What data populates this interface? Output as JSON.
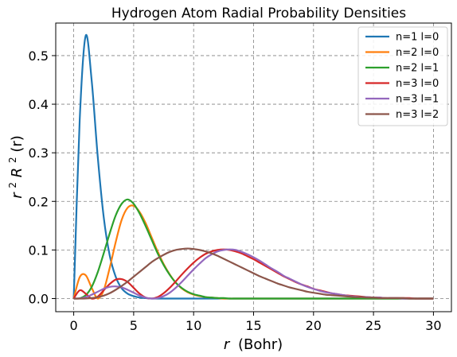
{
  "chart_data": {
    "type": "line",
    "title": "Hydrogen Atom Radial Probability Densities",
    "xlabel": {
      "var": "r",
      "unit": "(Bohr)"
    },
    "ylabel": {
      "base": "r",
      "sup1": "2",
      "mid": "R",
      "sup2": "2",
      "tail": "(r)"
    },
    "xlim": [
      -1.5,
      31.5
    ],
    "ylim": [
      -0.027,
      0.567
    ],
    "xticks": [
      0,
      5,
      10,
      15,
      20,
      25,
      30
    ],
    "yticks": [
      0.0,
      0.1,
      0.2,
      0.3,
      0.4,
      0.5
    ],
    "ytick_labels": [
      "0.0",
      "0.1",
      "0.2",
      "0.3",
      "0.4",
      "0.5"
    ],
    "xtick_labels": [
      "0",
      "5",
      "10",
      "15",
      "20",
      "25",
      "30"
    ],
    "grid": true,
    "legend_position": "top-right",
    "x": [
      0,
      0.5,
      1,
      1.5,
      2,
      2.5,
      3,
      3.5,
      4,
      4.5,
      5,
      5.5,
      6,
      6.5,
      7,
      7.5,
      8,
      8.5,
      9,
      9.5,
      10,
      10.5,
      11,
      11.5,
      12,
      12.5,
      13,
      13.5,
      14,
      14.5,
      15,
      15.5,
      16,
      16.5,
      17,
      17.5,
      18,
      18.5,
      19,
      19.5,
      20,
      20.5,
      21,
      21.5,
      22,
      22.5,
      23,
      23.5,
      24,
      24.5,
      25,
      25.5,
      26,
      26.5,
      27,
      27.5,
      28,
      28.5,
      29,
      29.5,
      30
    ],
    "series": [
      {
        "name": "n=1 l=0",
        "color": "#1f77b4",
        "values": [
          0,
          0.368,
          0.541,
          0.448,
          0.293,
          0.168,
          0.089,
          0.045,
          0.021,
          0.01,
          0.005,
          0.002,
          0.001,
          0,
          0,
          0,
          0,
          0,
          0,
          0,
          0,
          0,
          0,
          0,
          0,
          0,
          0,
          0,
          0,
          0,
          0,
          0,
          0,
          0,
          0,
          0,
          0,
          0,
          0,
          0,
          0,
          0,
          0,
          0,
          0,
          0,
          0,
          0,
          0,
          0,
          0,
          0,
          0,
          0,
          0,
          0,
          0,
          0,
          0,
          0,
          0
        ]
      },
      {
        "name": "n=2 l=0",
        "color": "#ff7f0e",
        "values": [
          0,
          0.044,
          0.048,
          0.022,
          0,
          0.017,
          0.063,
          0.116,
          0.162,
          0.187,
          0.191,
          0.178,
          0.155,
          0.126,
          0.097,
          0.071,
          0.05,
          0.033,
          0.021,
          0.013,
          0.008,
          0.005,
          0.003,
          0.002,
          0.001,
          0,
          0,
          0,
          0,
          0,
          0,
          0,
          0,
          0,
          0,
          0,
          0,
          0,
          0,
          0,
          0,
          0,
          0,
          0,
          0,
          0,
          0,
          0,
          0,
          0,
          0,
          0,
          0,
          0,
          0,
          0,
          0,
          0,
          0,
          0,
          0
        ]
      },
      {
        "name": "n=2 l=1",
        "color": "#2ca02c",
        "values": [
          0,
          0.0005,
          0.007,
          0.024,
          0.054,
          0.093,
          0.134,
          0.171,
          0.195,
          0.204,
          0.195,
          0.175,
          0.149,
          0.121,
          0.093,
          0.069,
          0.049,
          0.033,
          0.022,
          0.014,
          0.009,
          0.006,
          0.003,
          0.002,
          0.001,
          0.001,
          0,
          0,
          0,
          0,
          0,
          0,
          0,
          0,
          0,
          0,
          0,
          0,
          0,
          0,
          0,
          0,
          0,
          0,
          0,
          0,
          0,
          0,
          0,
          0,
          0,
          0,
          0,
          0,
          0,
          0,
          0,
          0,
          0,
          0,
          0
        ]
      },
      {
        "name": "n=3 l=0",
        "color": "#d62728",
        "values": [
          0,
          0.017,
          0.01,
          0,
          0.004,
          0.017,
          0.03,
          0.039,
          0.04,
          0.034,
          0.022,
          0.01,
          0.002,
          0.0001,
          0.003,
          0.011,
          0.022,
          0.035,
          0.049,
          0.062,
          0.074,
          0.084,
          0.092,
          0.097,
          0.1,
          0.101,
          0.1,
          0.097,
          0.093,
          0.087,
          0.081,
          0.074,
          0.067,
          0.06,
          0.053,
          0.046,
          0.04,
          0.034,
          0.029,
          0.025,
          0.02,
          0.017,
          0.014,
          0.011,
          0.009,
          0.007,
          0.006,
          0.005,
          0.004,
          0.003,
          0.002,
          0.002,
          0.001,
          0.001,
          0.001,
          0.001,
          0.001,
          0,
          0,
          0,
          0
        ]
      },
      {
        "name": "n=3 l=1",
        "color": "#9467bd",
        "values": [
          0,
          0.0003,
          0.003,
          0.008,
          0.014,
          0.02,
          0.024,
          0.025,
          0.023,
          0.018,
          0.012,
          0.006,
          0.002,
          0,
          0.001,
          0.005,
          0.012,
          0.022,
          0.034,
          0.047,
          0.06,
          0.072,
          0.083,
          0.091,
          0.097,
          0.1,
          0.101,
          0.1,
          0.096,
          0.091,
          0.085,
          0.078,
          0.07,
          0.062,
          0.055,
          0.047,
          0.041,
          0.035,
          0.029,
          0.024,
          0.02,
          0.016,
          0.013,
          0.011,
          0.009,
          0.007,
          0.005,
          0.004,
          0.003,
          0.003,
          0.002,
          0.002,
          0.001,
          0.001,
          0.001,
          0,
          0,
          0,
          0,
          0,
          0
        ]
      },
      {
        "name": "n=3 l=2",
        "color": "#8c564b",
        "values": [
          0,
          0,
          0.0002,
          0.001,
          0.003,
          0.006,
          0.011,
          0.018,
          0.026,
          0.035,
          0.045,
          0.055,
          0.065,
          0.075,
          0.083,
          0.09,
          0.096,
          0.1,
          0.102,
          0.103,
          0.102,
          0.1,
          0.097,
          0.093,
          0.088,
          0.082,
          0.076,
          0.07,
          0.064,
          0.058,
          0.052,
          0.046,
          0.041,
          0.036,
          0.031,
          0.027,
          0.023,
          0.02,
          0.017,
          0.014,
          0.012,
          0.01,
          0.008,
          0.007,
          0.006,
          0.005,
          0.004,
          0.003,
          0.003,
          0.002,
          0.002,
          0.001,
          0.001,
          0.001,
          0.001,
          0.001,
          0,
          0,
          0,
          0,
          0
        ]
      }
    ]
  }
}
